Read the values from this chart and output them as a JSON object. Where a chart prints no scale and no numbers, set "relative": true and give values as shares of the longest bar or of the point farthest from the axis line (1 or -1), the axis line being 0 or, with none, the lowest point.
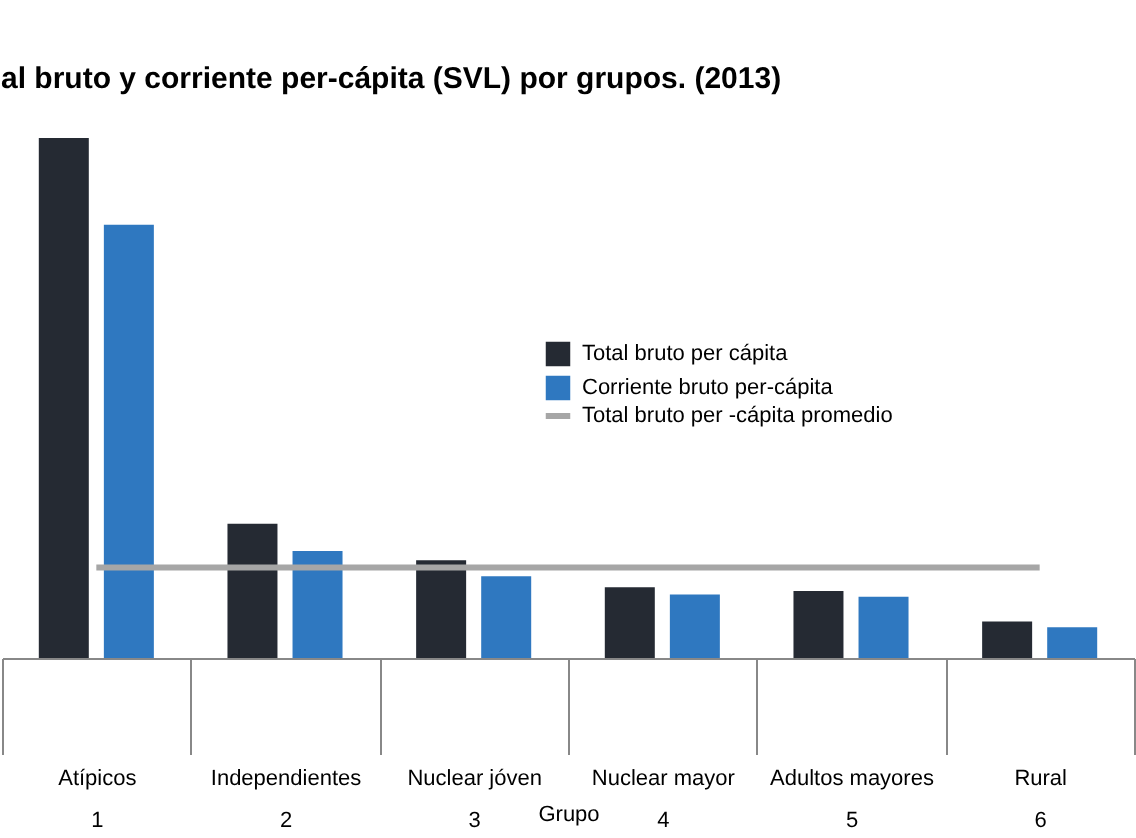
{
  "chart_data": {
    "type": "bar",
    "title": "al bruto y corriente per-cápita (SVL) por grupos. (2013)",
    "xlabel": "Grupo",
    "relative": true,
    "categories": [
      "Atípicos\n1",
      "Independientes\n2",
      "Nuclear jóven\n3",
      "Nuclear mayor\n4",
      "Adultos mayores\n5",
      "Rural\n6"
    ],
    "series": [
      {
        "name": "Total bruto per cápita",
        "color": "#252a33",
        "values": [
          1,
          0.258,
          0.188,
          0.136,
          0.129,
          0.07
        ]
      },
      {
        "name": "Corriente bruto per-cápita",
        "color": "#2f78c0",
        "values": [
          0.833,
          0.206,
          0.157,
          0.122,
          0.118,
          0.059
        ]
      },
      {
        "name": "Total bruto per -cápita promedio",
        "type": "line",
        "color": "#a6a6a6",
        "values": [
          0.174,
          0.174,
          0.174,
          0.174,
          0.174,
          0.174
        ]
      }
    ],
    "legend": "right",
    "grid": false
  }
}
